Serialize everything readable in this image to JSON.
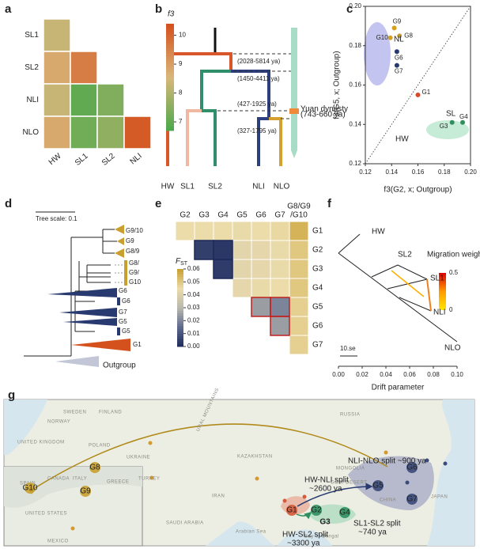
{
  "panel_labels": [
    "a",
    "b",
    "c",
    "d",
    "e",
    "f",
    "g"
  ],
  "chart_data": [
    {
      "type": "heatmap",
      "colorbar_title": "f3",
      "rows": [
        "SL1",
        "SL2",
        "NLI",
        "NLO"
      ],
      "columns": [
        "HW",
        "SL1",
        "SL2",
        "NLI"
      ],
      "values": [
        [
          8.3
        ],
        [
          8.8,
          9.6
        ],
        [
          8.3,
          7.0,
          7.4
        ],
        [
          8.8,
          7.2,
          7.6,
          10.2
        ]
      ],
      "clim": [
        6.7,
        10.4
      ],
      "cticks": [
        7,
        8,
        9,
        10
      ],
      "colors": [
        "#4aa84a",
        "#d9b77a",
        "#d4501c"
      ]
    },
    {
      "type": "scatter",
      "xlabel": "f3(G2, x; Outgroup)",
      "ylabel": "f3(G5, x; Outgroup)",
      "xlim": [
        0.12,
        0.2
      ],
      "ylim": [
        0.12,
        0.2
      ],
      "xticks": [
        0.12,
        0.14,
        0.16,
        0.18,
        {
          "value": 0.2,
          "label": "0.20"
        }
      ],
      "yticks": [
        0.12,
        0.14,
        0.16,
        0.18,
        {
          "value": 0.2,
          "label": "0.20"
        }
      ],
      "points": [
        {
          "label": "G9",
          "x": 0.142,
          "y": 0.189,
          "color": "#d4a020"
        },
        {
          "label": "G10",
          "x": 0.139,
          "y": 0.184,
          "color": "#d4a020"
        },
        {
          "label": "G8",
          "x": 0.146,
          "y": 0.185,
          "color": "#c89a30"
        },
        {
          "label": "G6",
          "x": 0.144,
          "y": 0.177,
          "color": "#283a70"
        },
        {
          "label": "G7",
          "x": 0.144,
          "y": 0.17,
          "color": "#283a70"
        },
        {
          "label": "G1",
          "x": 0.16,
          "y": 0.155,
          "color": "#d44a2a"
        },
        {
          "label": "G3",
          "x": 0.186,
          "y": 0.141,
          "color": "#2f8f5f"
        },
        {
          "label": "G4",
          "x": 0.194,
          "y": 0.141,
          "color": "#2f8f5f"
        }
      ],
      "groups": [
        "NL",
        "HW",
        "SL"
      ]
    },
    {
      "type": "heatmap",
      "colorbar_title": "F",
      "colorbar_title_sub": "ST",
      "rows": [
        "G1",
        "G2",
        "G3",
        "G4",
        "G5",
        "G6",
        "G7"
      ],
      "columns": [
        [
          "G2"
        ],
        [
          "G3"
        ],
        [
          "G4"
        ],
        [
          "G5"
        ],
        [
          "G6"
        ],
        [
          "G7"
        ],
        [
          "G8/G9",
          "/G10"
        ]
      ],
      "values": [
        [
          0.045,
          0.045,
          0.045,
          0.044,
          0.045,
          0.046,
          0.055
        ],
        [
          0.005,
          0.003,
          0.042,
          0.043,
          0.044,
          0.05
        ],
        [
          0.004,
          0.042,
          0.043,
          0.044,
          0.05
        ],
        [
          0.043,
          0.044,
          0.045,
          0.05
        ],
        [
          0.025,
          0.02,
          0.048
        ],
        [
          0.025,
          0.048
        ],
        [
          0.048
        ]
      ],
      "clim": [
        0,
        0.06
      ],
      "cticks": [
        {
          "value": 0,
          "label": "0.00"
        },
        0.01,
        0.02,
        0.03,
        0.04,
        0.05,
        0.06
      ],
      "colors": [
        "#1e2a5a",
        "#5d6a8e",
        "#b9b8ae",
        "#ecdcaa",
        "#c9a030"
      ]
    }
  ],
  "tree_b": {
    "tips": [
      "HW",
      "SL1",
      "SL2",
      "NLI",
      "NLO"
    ],
    "dates": [
      "(2028-5814 ya)",
      "(1450-4411 ya)",
      "(427-1925 ya)",
      "(327-1795 ya)"
    ],
    "event": "Yuan dynasty",
    "event_dates": "(743-660 ya)"
  },
  "tree_d": {
    "scale_label": "Tree scale: 0.1",
    "tips": [
      "G9/10",
      "G9",
      "G8/9",
      "G8/",
      "G9/",
      "G10",
      "G6",
      "G6",
      "G7",
      "G5",
      "G5",
      "G1",
      "Outgroup"
    ]
  },
  "treemix": {
    "tips": [
      "HW",
      "SL2",
      "SL1",
      "NLI",
      "NLO"
    ],
    "legend_title": "Migration weight",
    "legend_ticks": [
      0.5,
      0
    ],
    "legend_lim": [
      0,
      0.5
    ],
    "scale_label": "10.se",
    "xlabel": "Drift parameter",
    "xlim": [
      0,
      0.1
    ],
    "xticks": [
      {
        "value": 0,
        "label": "0.00"
      },
      0.02,
      0.04,
      0.06,
      0.08,
      {
        "value": 0.1,
        "label": "0.10"
      }
    ]
  },
  "map": {
    "places": [
      "SWEDEN",
      "FINLAND",
      "NORWAY",
      "UNITED KINGDOM",
      "POLAND",
      "UKRAINE",
      "KAZAKHSTAN",
      "RUSSIA",
      "URAL MOUNTAINS",
      "MONGOLIA",
      "GOBI DESERT",
      "CHINA",
      "IRAN",
      "SAUDI ARABIA",
      "TURKEY",
      "SPAIN",
      "ITALY",
      "GREECE",
      "JAPAN",
      "CANADA",
      "UNITED STATES",
      "MEXICO",
      "Arabian Sea",
      "Bay of Bengal"
    ],
    "groups": [
      "G8",
      "G10",
      "G9",
      "G6",
      "G5",
      "G7",
      "G1",
      "G2",
      "G3",
      "G4"
    ],
    "splits": [
      [
        "NLI-NLO split ~900 ya"
      ],
      [
        "HW-NLI split",
        "~2600 ya"
      ],
      [
        "HW-SL2 split",
        "~3300 ya"
      ],
      [
        "SL1-SL2 split",
        "~740 ya"
      ]
    ]
  }
}
